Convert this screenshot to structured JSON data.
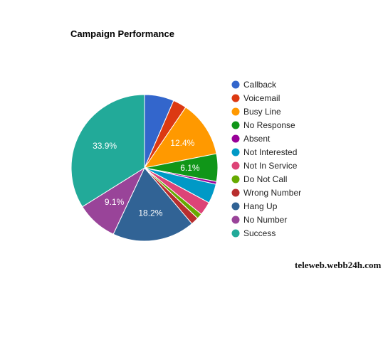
{
  "chart_data": {
    "type": "pie",
    "title": "Campaign Performance",
    "legend_position": "right",
    "slices": [
      {
        "label": "Callback",
        "value": 6.5,
        "color": "#3366cc",
        "shown_label": ""
      },
      {
        "label": "Voicemail",
        "value": 3.0,
        "color": "#dc3912",
        "shown_label": ""
      },
      {
        "label": "Busy Line",
        "value": 12.4,
        "color": "#ff9900",
        "shown_label": "12.4%"
      },
      {
        "label": "No Response",
        "value": 6.1,
        "color": "#109618",
        "shown_label": "6.1%"
      },
      {
        "label": "Absent",
        "value": 0.6,
        "color": "#990099",
        "shown_label": ""
      },
      {
        "label": "Not Interested",
        "value": 4.3,
        "color": "#0099c6",
        "shown_label": ""
      },
      {
        "label": "Not In Service",
        "value": 3.0,
        "color": "#dd4477",
        "shown_label": ""
      },
      {
        "label": "Do Not Call",
        "value": 1.2,
        "color": "#66aa00",
        "shown_label": ""
      },
      {
        "label": "Wrong Number",
        "value": 1.7,
        "color": "#b82e2e",
        "shown_label": ""
      },
      {
        "label": "Hang Up",
        "value": 18.2,
        "color": "#316395",
        "shown_label": "18.2%"
      },
      {
        "label": "No Number",
        "value": 9.1,
        "color": "#994499",
        "shown_label": "9.1%"
      },
      {
        "label": "Success",
        "value": 33.9,
        "color": "#22aa99",
        "shown_label": "33.9%"
      }
    ]
  },
  "watermark": "teleweb.webb24h.com"
}
